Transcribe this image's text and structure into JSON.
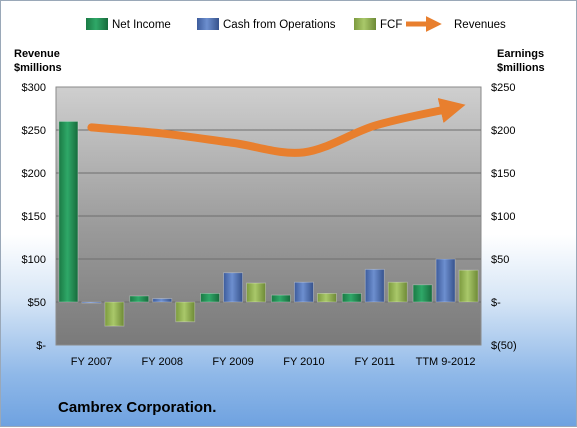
{
  "footer": {
    "company": "Cambrex Corporation."
  },
  "chart_data": {
    "type": "bar",
    "categories": [
      "FY 2007",
      "FY 2008",
      "FY 2009",
      "FY 2010",
      "FY 2011",
      "TTM 9-2012"
    ],
    "series": [
      {
        "name": "Net Income",
        "axis": "right",
        "kind": "bar",
        "color": "#1e8a4e",
        "values": [
          210,
          7,
          10,
          8,
          10,
          20
        ]
      },
      {
        "name": "Cash from Operations",
        "axis": "right",
        "kind": "bar",
        "color": "#4f6fb0",
        "values": [
          -1,
          4,
          34,
          23,
          38,
          50
        ]
      },
      {
        "name": "FCF",
        "axis": "right",
        "kind": "bar",
        "color": "#8fb04e",
        "values": [
          -28,
          -23,
          22,
          10,
          23,
          37
        ]
      },
      {
        "name": "Revenues",
        "axis": "left",
        "kind": "line",
        "color": "#e87f2e",
        "values": [
          253,
          246,
          235,
          224,
          255,
          274
        ]
      }
    ],
    "y_left": {
      "label": [
        "Revenue",
        "$millions"
      ],
      "ylim": [
        0,
        300
      ],
      "ticks": [
        {
          "v": 0,
          "label": "$-"
        },
        {
          "v": 50,
          "label": "$50"
        },
        {
          "v": 100,
          "label": "$100"
        },
        {
          "v": 150,
          "label": "$150"
        },
        {
          "v": 200,
          "label": "$200"
        },
        {
          "v": 250,
          "label": "$250"
        },
        {
          "v": 300,
          "label": "$300"
        }
      ]
    },
    "y_right": {
      "label": [
        "Earnings",
        "$millions"
      ],
      "ylim": [
        -50,
        250
      ],
      "ticks": [
        {
          "v": -50,
          "label": "$(50)"
        },
        {
          "v": 0,
          "label": "$-"
        },
        {
          "v": 50,
          "label": "$50"
        },
        {
          "v": 100,
          "label": "$100"
        },
        {
          "v": 150,
          "label": "$150"
        },
        {
          "v": 200,
          "label": "$200"
        },
        {
          "v": 250,
          "label": "$250"
        }
      ]
    },
    "legend_position": "top",
    "grid": true
  }
}
